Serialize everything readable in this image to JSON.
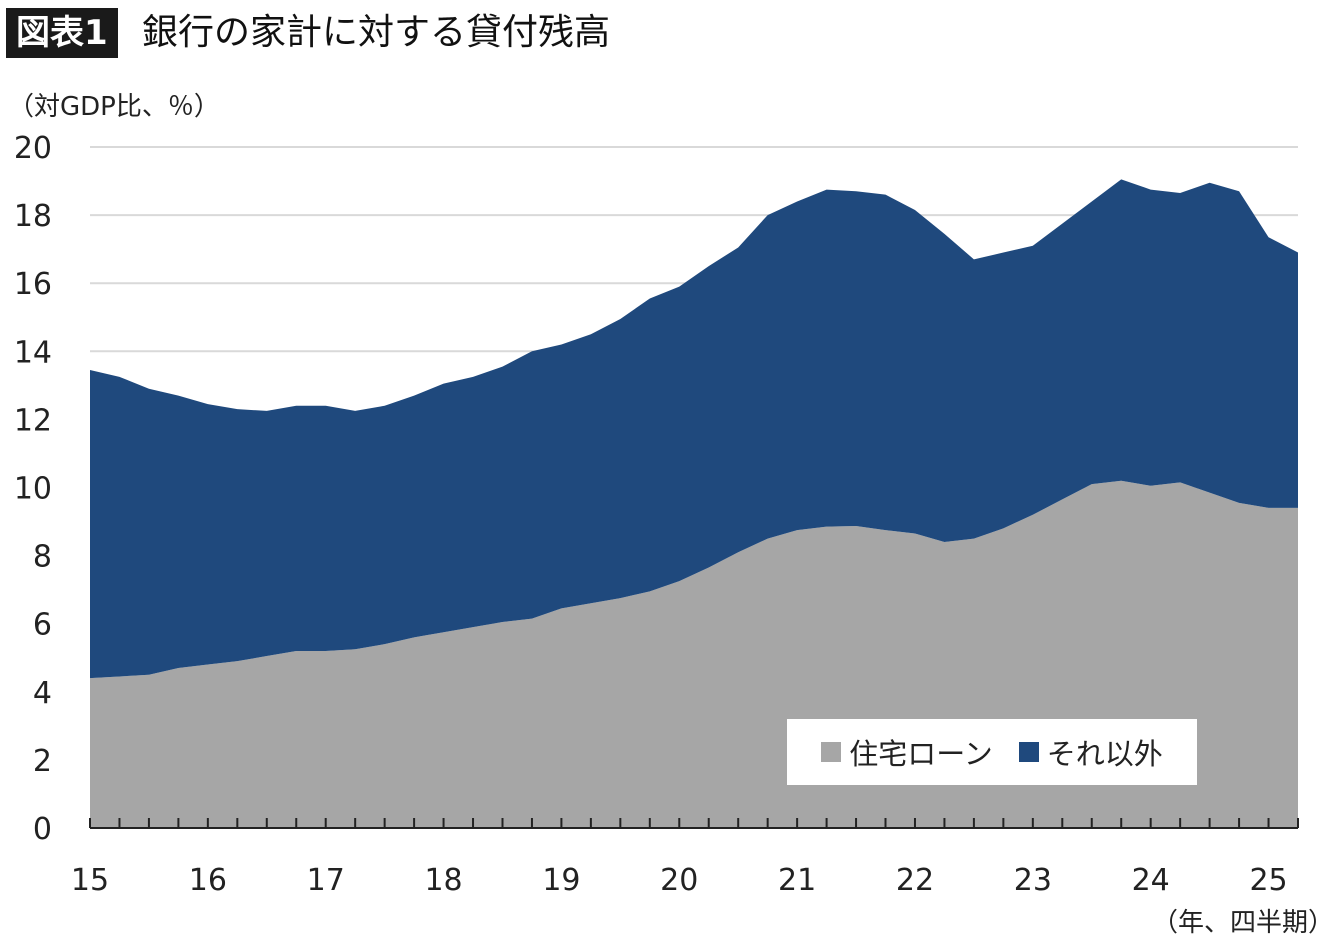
{
  "header": {
    "badge": "図表1",
    "title": "銀行の家計に対する貸付残高"
  },
  "chart_data": {
    "type": "area",
    "stacked": true,
    "ylabel": "（対GDP比、％）",
    "xlabel": "（年、四半期）",
    "ylim": [
      0,
      20
    ],
    "yticks": [
      0,
      2,
      4,
      6,
      8,
      10,
      12,
      14,
      16,
      18,
      20
    ],
    "xtick_labels": [
      "15",
      "16",
      "17",
      "18",
      "19",
      "20",
      "21",
      "22",
      "23",
      "24",
      "25"
    ],
    "grid": true,
    "legend_position": "bottom-right",
    "x": [
      "15Q1",
      "15Q2",
      "15Q3",
      "15Q4",
      "16Q1",
      "16Q2",
      "16Q3",
      "16Q4",
      "17Q1",
      "17Q2",
      "17Q3",
      "17Q4",
      "18Q1",
      "18Q2",
      "18Q3",
      "18Q4",
      "19Q1",
      "19Q2",
      "19Q3",
      "19Q4",
      "20Q1",
      "20Q2",
      "20Q3",
      "20Q4",
      "21Q1",
      "21Q2",
      "21Q3",
      "21Q4",
      "22Q1",
      "22Q2",
      "22Q3",
      "22Q4",
      "23Q1",
      "23Q2",
      "23Q3",
      "23Q4",
      "24Q1",
      "24Q2",
      "24Q3",
      "24Q4",
      "25Q1",
      "25Q2"
    ],
    "series": [
      {
        "name": "住宅ローン",
        "color": "#a6a6a6",
        "values": [
          4.4,
          4.45,
          4.5,
          4.7,
          4.8,
          4.9,
          5.05,
          5.2,
          5.2,
          5.25,
          5.4,
          5.6,
          5.75,
          5.9,
          6.05,
          6.15,
          6.45,
          6.6,
          6.75,
          6.95,
          7.25,
          7.65,
          8.1,
          8.5,
          8.75,
          8.85,
          8.87,
          8.75,
          8.65,
          8.4,
          8.5,
          8.8,
          9.2,
          9.65,
          10.1,
          10.2,
          10.05,
          10.15,
          9.85,
          9.55,
          9.4,
          9.4
        ]
      },
      {
        "name": "それ以外",
        "color": "#1f497d",
        "values": [
          9.05,
          8.8,
          8.4,
          8.0,
          7.65,
          7.4,
          7.2,
          7.2,
          7.2,
          7.0,
          7.0,
          7.1,
          7.3,
          7.35,
          7.5,
          7.85,
          7.75,
          7.9,
          8.2,
          8.6,
          8.65,
          8.85,
          8.95,
          9.5,
          9.65,
          9.9,
          9.83,
          9.85,
          9.5,
          9.05,
          8.2,
          8.1,
          7.9,
          8.1,
          8.3,
          8.85,
          8.7,
          8.5,
          9.1,
          9.15,
          7.95,
          7.5
        ]
      }
    ]
  }
}
